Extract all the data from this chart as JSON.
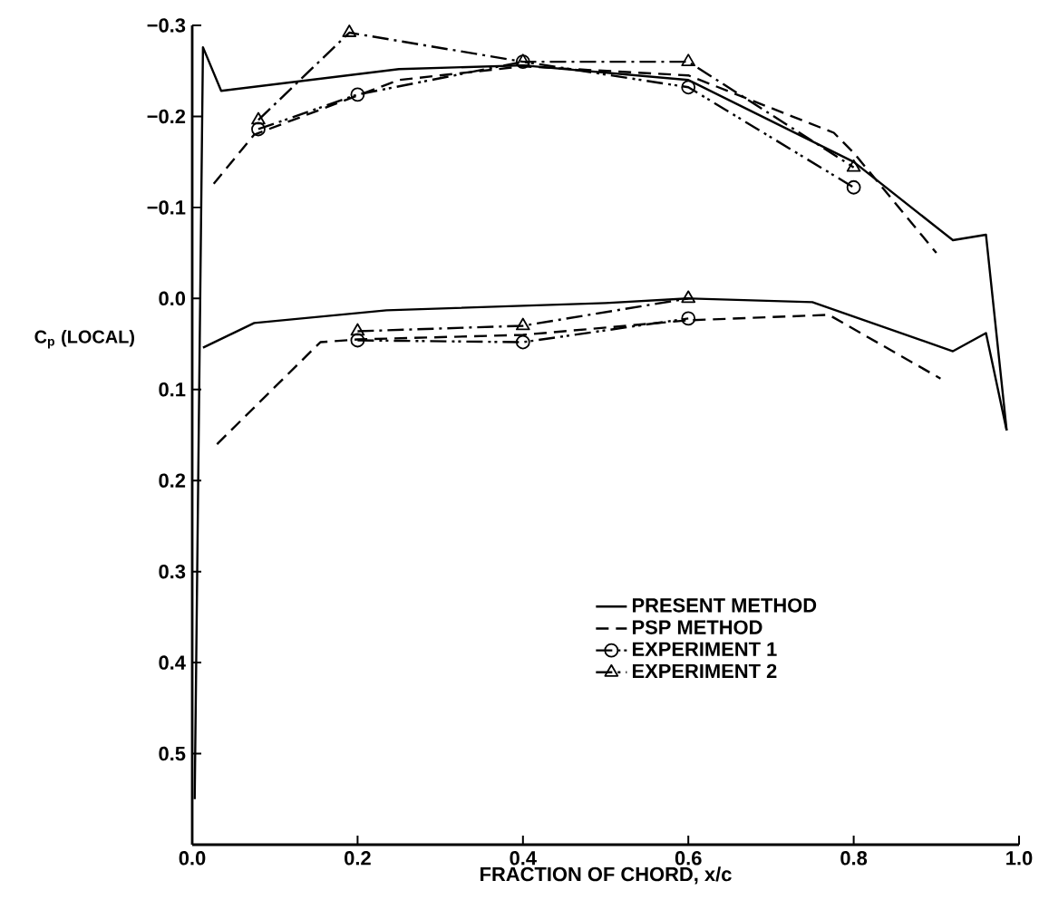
{
  "chart_data": {
    "type": "line",
    "xlabel": "FRACTION OF CHORD, x/c",
    "ylabel": "C$_{p}$ (LOCAL)",
    "xlim": [
      0,
      1.0
    ],
    "ylim": [
      0.6,
      -0.3
    ],
    "xticks": [
      {
        "value": 0,
        "label": "0.0"
      },
      {
        "value": 0.2,
        "label": "0.2"
      },
      {
        "value": 0.4,
        "label": "0.4"
      },
      {
        "value": 0.6,
        "label": "0.6"
      },
      {
        "value": 0.8,
        "label": "0.8"
      },
      {
        "value": 1.0,
        "label": "1.0"
      }
    ],
    "yticks": [
      {
        "value": -0.3,
        "label": "−0.3"
      },
      {
        "value": -0.2,
        "label": "−0.2"
      },
      {
        "value": -0.1,
        "label": "−0.1"
      },
      {
        "value": 0,
        "label": "0.0"
      },
      {
        "value": 0.1,
        "label": "0.1"
      },
      {
        "value": 0.2,
        "label": "0.2"
      },
      {
        "value": 0.3,
        "label": "0.3"
      },
      {
        "value": 0.4,
        "label": "0.4"
      },
      {
        "value": 0.5,
        "label": "0.5"
      }
    ],
    "grid": false,
    "legend": "bottom right",
    "series": [
      {
        "name": "PRESENT METHOD",
        "color": "#000000",
        "marker": "none",
        "line_style": "solid",
        "x": [
          0.003,
          0.013,
          0.035,
          0.25,
          0.4,
          0.6,
          0.8,
          0.92,
          0.96,
          0.985
        ],
        "values": [
          0.55,
          -0.276,
          -0.228,
          -0.252,
          -0.256,
          -0.24,
          -0.15,
          -0.064,
          -0.07,
          0.145
        ]
      },
      {
        "color": "#000000",
        "marker": "none",
        "line_style": "solid",
        "x": [
          0.013,
          0.075,
          0.235,
          0.5,
          0.6,
          0.75,
          0.92,
          0.96,
          0.985
        ],
        "values": [
          0.054,
          0.027,
          0.013,
          0.005,
          0.0,
          0.004,
          0.058,
          0.038,
          0.145
        ]
      },
      {
        "name": "PSP METHOD",
        "color": "#000000",
        "marker": "none",
        "line_style": "dashed",
        "x": [
          0.026,
          0.075,
          0.25,
          0.4,
          0.6,
          0.776,
          0.8,
          0.9
        ],
        "values": [
          -0.126,
          -0.18,
          -0.24,
          -0.255,
          -0.245,
          -0.182,
          -0.16,
          -0.05
        ]
      },
      {
        "color": "#000000",
        "marker": "none",
        "line_style": "dashed",
        "x": [
          0.03,
          0.155,
          0.2,
          0.4,
          0.6,
          0.77,
          0.905
        ],
        "values": [
          0.16,
          0.048,
          0.045,
          0.04,
          0.024,
          0.018,
          0.088
        ]
      },
      {
        "name": "EXPERIMENT 1",
        "color": "#000000",
        "marker": "circle",
        "line_style": "dashdotdot",
        "x": [
          0.08,
          0.2,
          0.4,
          0.6,
          0.8
        ],
        "values": [
          -0.186,
          -0.224,
          -0.26,
          -0.232,
          -0.122
        ]
      },
      {
        "color": "#000000",
        "marker": "circle",
        "line_style": "dashdotdot",
        "x": [
          0.2,
          0.4,
          0.6
        ],
        "values": [
          0.046,
          0.048,
          0.022
        ]
      },
      {
        "name": "EXPERIMENT 2",
        "color": "#000000",
        "marker": "triangle",
        "line_style": "dashdot",
        "x": [
          0.08,
          0.19,
          0.4,
          0.6,
          0.8
        ],
        "values": [
          -0.196,
          -0.292,
          -0.26,
          -0.26,
          -0.144
        ]
      },
      {
        "color": "#000000",
        "marker": "triangle",
        "line_style": "dashdot",
        "x": [
          0.2,
          0.4,
          0.6
        ],
        "values": [
          0.036,
          0.03,
          0.0
        ]
      }
    ]
  }
}
